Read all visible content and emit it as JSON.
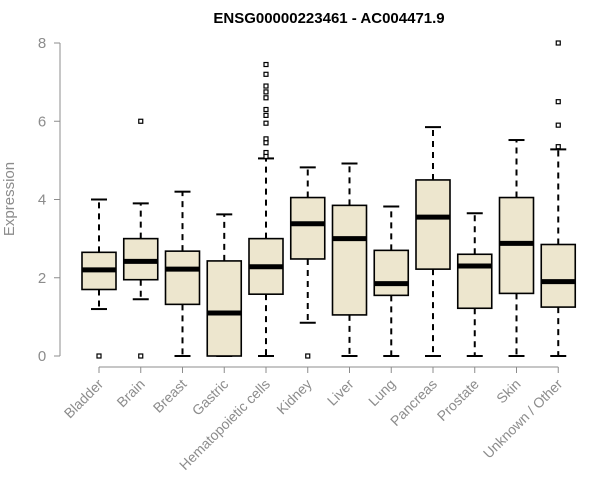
{
  "chart_data": {
    "type": "boxplot",
    "title": "ENSG00000223461 - AC004471.9",
    "xlabel": "",
    "ylabel": "Expression",
    "ylim": [
      0,
      8
    ],
    "yticks": [
      0,
      2,
      4,
      6,
      8
    ],
    "box_fill": "#ede6ce",
    "categories": [
      "Bladder",
      "Brain",
      "Breast",
      "Gastric",
      "Hematopoietic cells",
      "Kidney",
      "Liver",
      "Lung",
      "Pancreas",
      "Prostate",
      "Skin",
      "Unknown / Other"
    ],
    "boxes": [
      {
        "category": "Bladder",
        "whisker_low": 1.2,
        "q1": 1.7,
        "median": 2.2,
        "q3": 2.65,
        "whisker_high": 4.0,
        "outliers": [
          0
        ]
      },
      {
        "category": "Brain",
        "whisker_low": 1.45,
        "q1": 1.95,
        "median": 2.42,
        "q3": 3.0,
        "whisker_high": 3.9,
        "outliers": [
          6.0,
          0
        ]
      },
      {
        "category": "Breast",
        "whisker_low": 0,
        "q1": 1.32,
        "median": 2.22,
        "q3": 2.68,
        "whisker_high": 4.2,
        "outliers": []
      },
      {
        "category": "Gastric",
        "whisker_low": 0,
        "q1": 0,
        "median": 1.1,
        "q3": 2.43,
        "whisker_high": 3.62,
        "outliers": []
      },
      {
        "category": "Hematopoietic cells",
        "whisker_low": 0,
        "q1": 1.58,
        "median": 2.28,
        "q3": 3.0,
        "whisker_high": 5.05,
        "outliers": [
          7.45,
          7.2,
          6.9,
          6.75,
          6.6,
          6.3,
          6.15,
          5.95,
          5.55,
          5.45,
          5.2,
          5.1
        ]
      },
      {
        "category": "Kidney",
        "whisker_low": 0.85,
        "q1": 2.48,
        "median": 3.38,
        "q3": 4.05,
        "whisker_high": 4.82,
        "outliers": [
          0
        ]
      },
      {
        "category": "Liver",
        "whisker_low": 0,
        "q1": 1.05,
        "median": 3.0,
        "q3": 3.85,
        "whisker_high": 4.92,
        "outliers": []
      },
      {
        "category": "Lung",
        "whisker_low": 0,
        "q1": 1.55,
        "median": 1.85,
        "q3": 2.7,
        "whisker_high": 3.82,
        "outliers": []
      },
      {
        "category": "Pancreas",
        "whisker_low": 0,
        "q1": 2.22,
        "median": 3.55,
        "q3": 4.5,
        "whisker_high": 5.85,
        "outliers": []
      },
      {
        "category": "Prostate",
        "whisker_low": 0,
        "q1": 1.22,
        "median": 2.3,
        "q3": 2.6,
        "whisker_high": 3.65,
        "outliers": []
      },
      {
        "category": "Skin",
        "whisker_low": 0,
        "q1": 1.6,
        "median": 2.88,
        "q3": 4.05,
        "whisker_high": 5.52,
        "outliers": []
      },
      {
        "category": "Unknown / Other",
        "whisker_low": 0,
        "q1": 1.25,
        "median": 1.9,
        "q3": 2.85,
        "whisker_high": 5.28,
        "outliers": [
          8.0,
          6.5,
          5.9,
          5.35
        ]
      }
    ]
  }
}
